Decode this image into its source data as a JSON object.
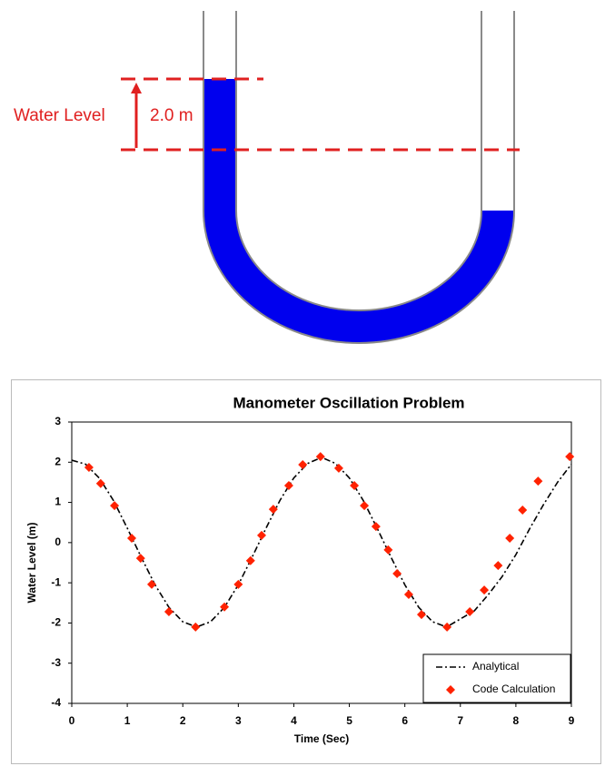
{
  "diagram": {
    "label": "Water Level",
    "height_label": "2.0 m"
  },
  "chart_data": {
    "type": "line",
    "title": "Manometer Oscillation Problem",
    "x_label": "Time (Sec)",
    "y_label": "Water Level (m)",
    "xlim": [
      0,
      9
    ],
    "xticks": [
      0,
      1,
      2,
      3,
      4,
      5,
      6,
      7,
      8,
      9
    ],
    "ylim": [
      -4,
      3
    ],
    "yticks": [
      -4,
      -3,
      -2,
      -1,
      0,
      1,
      2,
      3
    ],
    "legend": "lower right",
    "series": [
      {
        "name": "Analytical",
        "color": "#000000",
        "style": "dash-dot",
        "x": [
          0,
          0.25,
          0.5,
          0.75,
          1,
          1.25,
          1.5,
          1.75,
          2,
          2.25,
          2.5,
          2.75,
          3,
          3.25,
          3.5,
          3.75,
          4,
          4.25,
          4.5,
          4.75,
          5,
          5.25,
          5.5,
          5.75,
          6,
          6.25,
          6.5,
          6.75,
          7,
          7.25,
          7.5,
          7.75,
          8,
          8.25,
          8.5,
          8.75,
          9
        ],
        "values": [
          2.05,
          1.95,
          1.6,
          1.05,
          0.36,
          -0.36,
          -1.05,
          -1.61,
          -1.97,
          -2.1,
          -1.97,
          -1.61,
          -1.05,
          -0.36,
          0.36,
          1.05,
          1.61,
          1.97,
          2.12,
          1.97,
          1.61,
          1.05,
          0.36,
          -0.36,
          -1.05,
          -1.61,
          -1.97,
          -2.1,
          -1.9,
          -1.7,
          -1.3,
          -0.85,
          -0.3,
          0.35,
          0.95,
          1.5,
          1.95
        ]
      },
      {
        "name": "Code Calculation",
        "color": "#ff2200",
        "style": "diamond",
        "x": [
          0.31,
          0.52,
          0.77,
          1.08,
          1.24,
          1.44,
          1.75,
          2.23,
          2.75,
          3.0,
          3.22,
          3.42,
          3.63,
          3.91,
          4.16,
          4.48,
          4.81,
          5.09,
          5.27,
          5.48,
          5.7,
          5.86,
          6.07,
          6.3,
          6.76,
          7.17,
          7.43,
          7.68,
          7.89,
          8.12,
          8.4,
          8.97
        ],
        "values": [
          1.87,
          1.47,
          0.92,
          0.11,
          -0.39,
          -1.04,
          -1.72,
          -2.1,
          -1.6,
          -1.04,
          -0.45,
          0.18,
          0.83,
          1.42,
          1.94,
          2.14,
          1.85,
          1.42,
          0.92,
          0.4,
          -0.18,
          -0.77,
          -1.29,
          -1.79,
          -2.1,
          -1.72,
          -1.18,
          -0.57,
          0.11,
          0.81,
          1.53,
          2.14
        ]
      }
    ]
  }
}
